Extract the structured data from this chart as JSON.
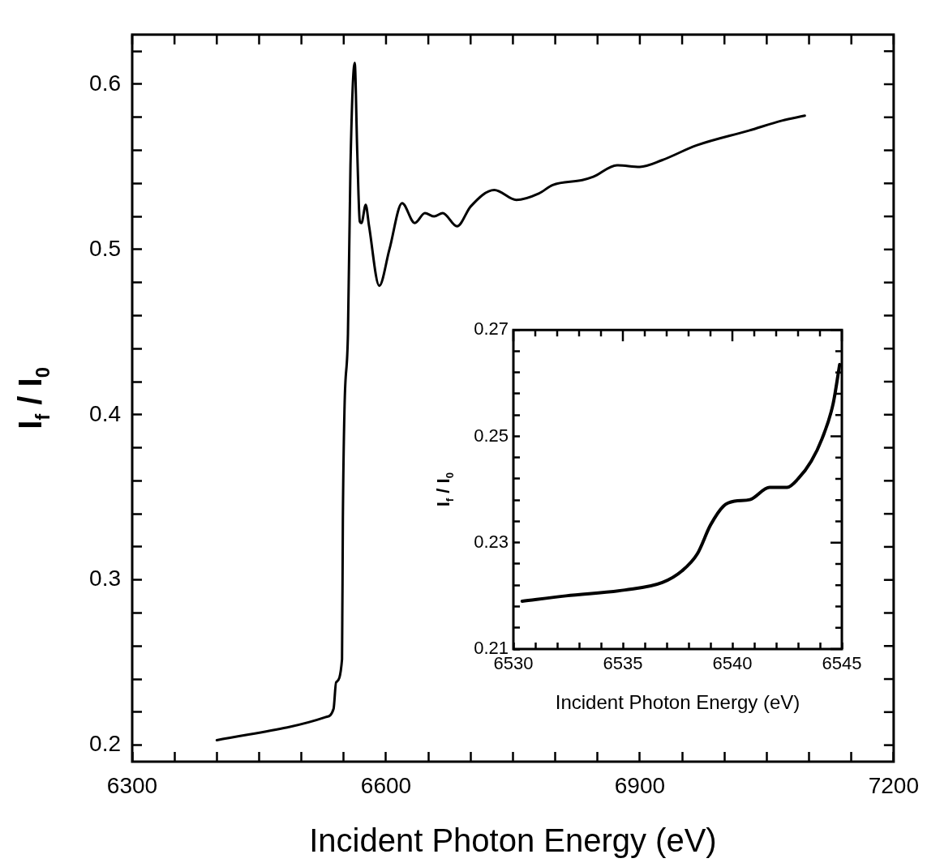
{
  "chart_data": [
    {
      "type": "line",
      "xlabel": "Incident Photon Energy (eV)",
      "ylabel": "I$_{f}$ / I$_{0}$",
      "color": "#000000",
      "marker": "none",
      "grid": false,
      "x": [
        6400,
        6529,
        6538,
        6541,
        6548,
        6549,
        6551,
        6555,
        6558,
        6563,
        6566,
        6569,
        6571,
        6576,
        6580,
        6592,
        6604,
        6619,
        6634,
        6646,
        6657,
        6667,
        6684,
        6700,
        6728,
        6754,
        6781,
        6797,
        6832,
        6845,
        6873,
        6900,
        6926,
        6967,
        7029,
        7068,
        7095
      ],
      "values": [
        0.203,
        0.217,
        0.222,
        0.238,
        0.252,
        0.337,
        0.405,
        0.449,
        0.551,
        0.613,
        0.559,
        0.517,
        0.516,
        0.527,
        0.514,
        0.478,
        0.5,
        0.528,
        0.516,
        0.522,
        0.52,
        0.522,
        0.514,
        0.526,
        0.536,
        0.53,
        0.534,
        0.539,
        0.542,
        0.544,
        0.551,
        0.55,
        0.554,
        0.563,
        0.572,
        0.578,
        0.581
      ],
      "xlim": [
        6300,
        7200
      ],
      "ylim": [
        0.19,
        0.63
      ],
      "xticks": [
        6300,
        {
          "value": 6350,
          "label": null
        },
        {
          "value": 6400,
          "label": null
        },
        {
          "value": 6450,
          "label": null
        },
        {
          "value": 6500,
          "label": null
        },
        {
          "value": 6550,
          "label": null
        },
        6600,
        {
          "value": 6650,
          "label": null
        },
        {
          "value": 6700,
          "label": null
        },
        {
          "value": 6750,
          "label": null
        },
        {
          "value": 6800,
          "label": null
        },
        {
          "value": 6850,
          "label": null
        },
        6900,
        {
          "value": 6950,
          "label": null
        },
        {
          "value": 7000,
          "label": null
        },
        {
          "value": 7050,
          "label": null
        },
        {
          "value": 7100,
          "label": null
        },
        {
          "value": 7150,
          "label": null
        },
        7200
      ],
      "yticks": [
        0.2,
        {
          "value": 0.22,
          "label": null
        },
        {
          "value": 0.24,
          "label": null
        },
        {
          "value": 0.26,
          "label": null
        },
        {
          "value": 0.28,
          "label": null
        },
        0.3,
        {
          "value": 0.32,
          "label": null
        },
        {
          "value": 0.34,
          "label": null
        },
        {
          "value": 0.36,
          "label": null
        },
        {
          "value": 0.38,
          "label": null
        },
        0.4,
        {
          "value": 0.42,
          "label": null
        },
        {
          "value": 0.44,
          "label": null
        },
        {
          "value": 0.46,
          "label": null
        },
        {
          "value": 0.48,
          "label": null
        },
        0.5,
        {
          "value": 0.52,
          "label": null
        },
        {
          "value": 0.54,
          "label": null
        },
        {
          "value": 0.56,
          "label": null
        },
        {
          "value": 0.58,
          "label": null
        },
        0.6,
        {
          "value": 0.62,
          "label": null
        }
      ]
    },
    {
      "type": "line",
      "xlabel": "Incident Photon Energy (eV)",
      "ylabel": "I$_{f}$ / I$_{0}$",
      "color": "#000000",
      "marker": "none",
      "grid": false,
      "x": [
        6530.4,
        6532.4,
        6535.1,
        6536.8,
        6537.7,
        6538.4,
        6539.0,
        6539.6,
        6540.1,
        6540.8,
        6541.7,
        6542.5,
        6543.0,
        6543.6,
        6544.1,
        6544.6,
        6544.9
      ],
      "values": [
        0.219,
        0.22,
        0.2211,
        0.2225,
        0.2247,
        0.2279,
        0.2333,
        0.2369,
        0.2378,
        0.2381,
        0.2404,
        0.2404,
        0.242,
        0.2453,
        0.2496,
        0.2561,
        0.2635
      ],
      "xlim": [
        6530,
        6545
      ],
      "ylim": [
        0.21,
        0.27
      ],
      "xticks": [
        6530,
        {
          "value": 6531,
          "label": null
        },
        {
          "value": 6532,
          "label": null
        },
        {
          "value": 6533,
          "label": null
        },
        {
          "value": 6534,
          "label": null
        },
        6535,
        {
          "value": 6536,
          "label": null
        },
        {
          "value": 6537,
          "label": null
        },
        {
          "value": 6538,
          "label": null
        },
        {
          "value": 6539,
          "label": null
        },
        6540,
        {
          "value": 6541,
          "label": null
        },
        {
          "value": 6542,
          "label": null
        },
        {
          "value": 6543,
          "label": null
        },
        {
          "value": 6544,
          "label": null
        },
        6545
      ],
      "yticks": [
        0.21,
        {
          "value": 0.214,
          "label": null
        },
        {
          "value": 0.218,
          "label": null
        },
        {
          "value": 0.222,
          "label": null
        },
        {
          "value": 0.226,
          "label": null
        },
        0.23,
        {
          "value": 0.234,
          "label": null
        },
        {
          "value": 0.238,
          "label": null
        },
        {
          "value": 0.242,
          "label": null
        },
        {
          "value": 0.246,
          "label": null
        },
        0.25,
        {
          "value": 0.254,
          "label": null
        },
        {
          "value": 0.258,
          "label": null
        },
        {
          "value": 0.262,
          "label": null
        },
        {
          "value": 0.266,
          "label": null
        },
        0.27
      ]
    }
  ]
}
